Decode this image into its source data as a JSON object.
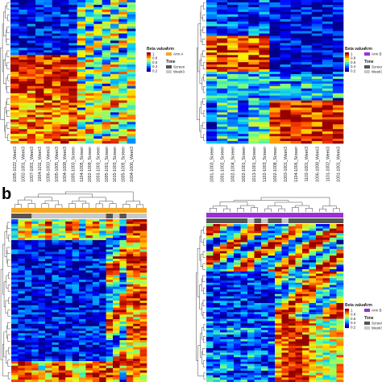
{
  "figure": {
    "panel_letters": [
      "b"
    ]
  },
  "chart_data": [
    {
      "type": "heatmap",
      "panel": "a-left",
      "legend": {
        "beta_title": "Beta value",
        "beta_ticks": [
          "1",
          "0.8",
          "0.6",
          "0.4",
          "0.2"
        ],
        "arm_title": "Arm",
        "arm_entries": [
          {
            "label": "Arm A",
            "color": "#f5a623"
          }
        ],
        "time_title": "Time",
        "time_entries": [
          {
            "label": "Screen",
            "color": "#555555"
          },
          {
            "label": "Week3",
            "color": "#c8c8c8"
          }
        ]
      },
      "columns": [
        "1005-1022_Week3",
        "1002-1001_Week3",
        "1007-1001_Week3",
        "1004-1011_Week3",
        "1006-1003_Week3",
        "1005-1005_Week3",
        "1004-1008_Week3",
        "1005-1003_Screen",
        "1104-1005_Screen",
        "1002-1009_Screen",
        "1003-1003_Screen",
        "1005-1001_Screen",
        "1015-1003_Screen",
        "1005-1005_Screen",
        "1004-1006_Week3"
      ]
    },
    {
      "type": "heatmap",
      "panel": "a-right",
      "legend": {
        "beta_title": "Beta value",
        "beta_ticks": [
          "1",
          "0.8",
          "0.6",
          "0.4",
          "0.2"
        ],
        "arm_title": "Arm",
        "arm_entries": [
          {
            "label": "Arm B",
            "color": "#9b30d9"
          }
        ],
        "time_title": "Time",
        "time_entries": [
          {
            "label": "Screen",
            "color": "#555555"
          },
          {
            "label": "Week3",
            "color": "#c8c8c8"
          }
        ]
      },
      "columns": [
        "1001-1003_Screen",
        "1001-1002_Screen",
        "1002-1004_Screen",
        "1002-1001_Screen",
        "1013-1001_Screen",
        "1102-1003_Screen",
        "1002-1008_Screen",
        "1003-1001_Week3",
        "1104-1006_Screen",
        "1102-1001_Week3",
        "1006-1008_Week3",
        "1101-1002_Week3",
        "1001-1001_Week3"
      ]
    },
    {
      "type": "heatmap",
      "panel": "b-left",
      "legend": {
        "beta_title": "Beta value",
        "beta_ticks": [
          "1",
          "0.8",
          "0.6",
          "0.4",
          "0.2"
        ],
        "arm_title": "Arm",
        "arm_entries": [
          {
            "label": "Arm A",
            "color": "#f5a623"
          }
        ],
        "time_title": "Time",
        "time_entries": [
          {
            "label": "Screen",
            "color": "#555555"
          },
          {
            "label": "Week3",
            "color": "#c8c8c8"
          }
        ]
      },
      "columns": []
    },
    {
      "type": "heatmap",
      "panel": "b-right",
      "legend": {
        "beta_title": "Beta value",
        "beta_ticks": [
          "1",
          "0.8",
          "0.6",
          "0.4",
          "0.2"
        ],
        "arm_title": "Arm",
        "arm_entries": [
          {
            "label": "Arm B",
            "color": "#9b30d9"
          }
        ],
        "time_title": "Time",
        "time_entries": [
          {
            "label": "Screen",
            "color": "#555555"
          },
          {
            "label": "Week3",
            "color": "#c8c8c8"
          }
        ]
      },
      "columns": []
    }
  ]
}
